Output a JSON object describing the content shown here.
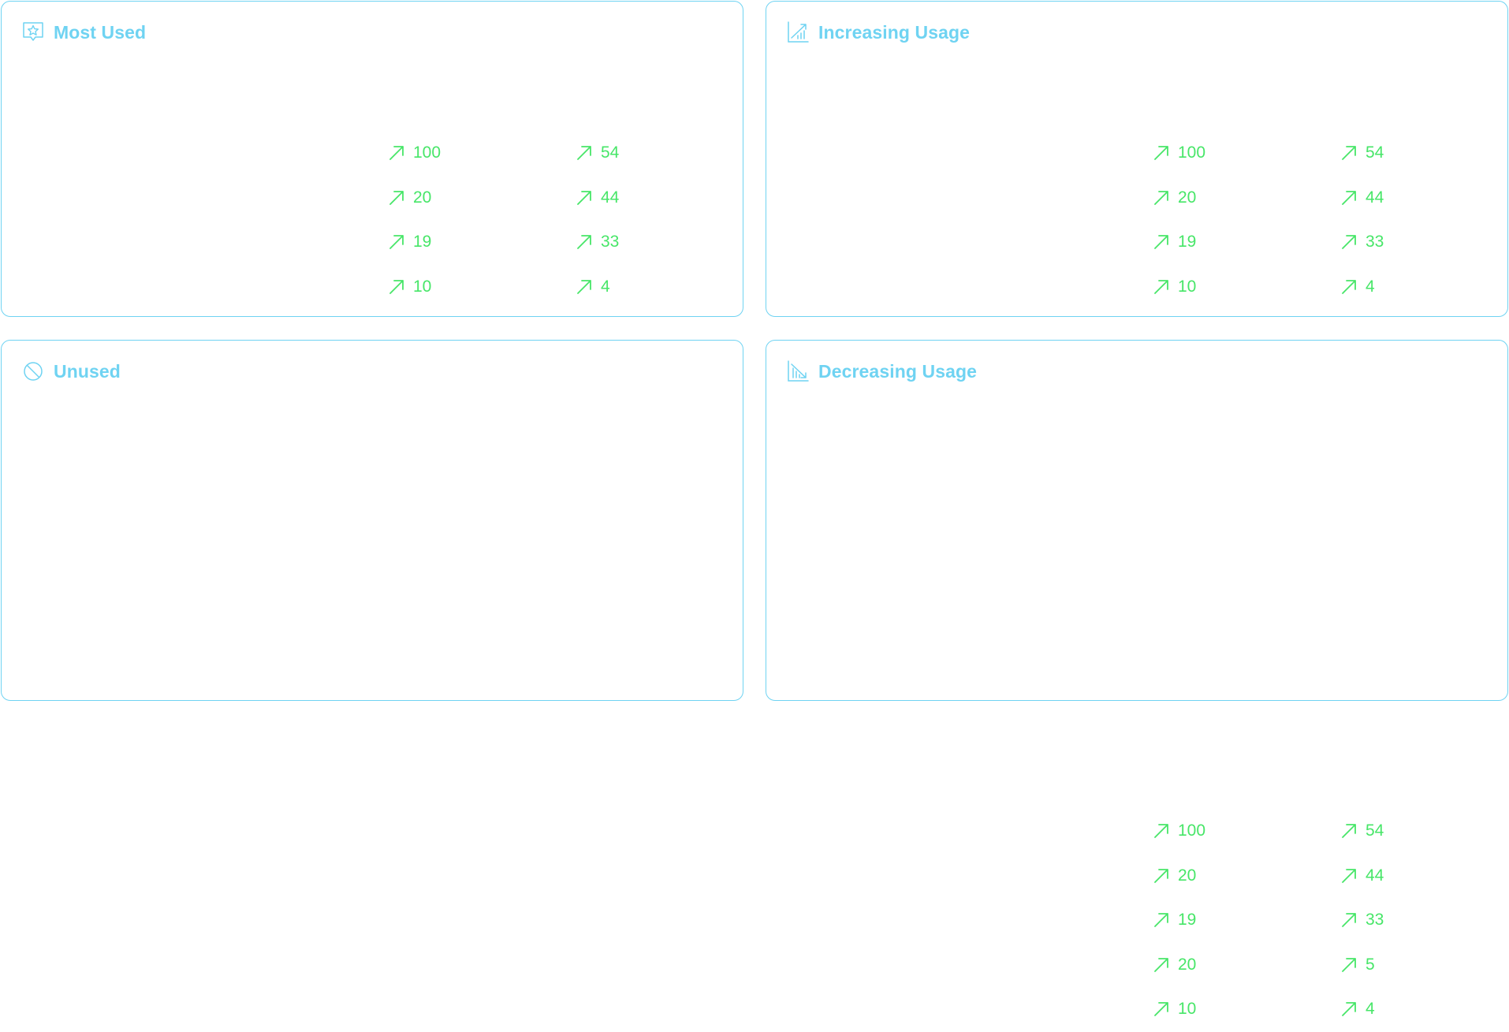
{
  "colors": {
    "accent": "#6fd3f2",
    "positive": "#47e668",
    "background": "#ffffff"
  },
  "cards": {
    "most_used": {
      "title": "Most Used",
      "icon": "star-badge-icon",
      "stats_left": [
        "100",
        "20",
        "19",
        "10"
      ],
      "stats_right": [
        "54",
        "44",
        "33",
        "4"
      ]
    },
    "increasing": {
      "title": "Increasing Usage",
      "icon": "chart-trending-up-icon",
      "stats_left": [
        "100",
        "20",
        "19",
        "10"
      ],
      "stats_right": [
        "54",
        "44",
        "33",
        "4"
      ]
    },
    "unused": {
      "title": "Unused",
      "icon": "ban-icon"
    },
    "decreasing": {
      "title": "Decreasing Usage",
      "icon": "chart-trending-down-icon",
      "stats_left": [
        "100",
        "20",
        "19",
        "20",
        "10"
      ],
      "stats_right": [
        "54",
        "44",
        "33",
        "5",
        "4"
      ]
    }
  },
  "stat_icon": "arrow-up-right-icon"
}
